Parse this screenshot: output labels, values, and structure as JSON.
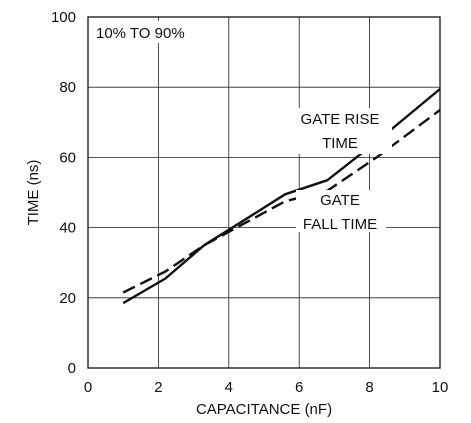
{
  "chart_data": {
    "type": "line",
    "title": "",
    "xlabel": "CAPACITANCE (nF)",
    "ylabel": "TIME (ns)",
    "xlim": [
      0,
      10
    ],
    "ylim": [
      0,
      100
    ],
    "xticks": [
      0,
      2,
      4,
      6,
      8,
      10
    ],
    "yticks": [
      0,
      20,
      40,
      60,
      80,
      100
    ],
    "grid": true,
    "annotations": {
      "range": "10% TO 90%",
      "rise_line1": "GATE RISE",
      "rise_line2": "TIME",
      "fall_line1": "GATE",
      "fall_line2": "FALL TIME"
    },
    "series": [
      {
        "name": "GATE RISE TIME",
        "style": "solid",
        "x": [
          1.0,
          2.2,
          3.3,
          4.5,
          5.6,
          6.8,
          8.2,
          10.0
        ],
        "y": [
          18.5,
          25.5,
          35.0,
          42.5,
          49.5,
          53.5,
          64.5,
          79.5
        ]
      },
      {
        "name": "GATE FALL TIME",
        "style": "dashed",
        "x": [
          1.0,
          2.2,
          3.3,
          4.5,
          5.6,
          6.8,
          8.2,
          10.0
        ],
        "y": [
          21.5,
          27.5,
          35.0,
          41.5,
          47.5,
          50.5,
          60.0,
          73.5
        ]
      }
    ]
  }
}
